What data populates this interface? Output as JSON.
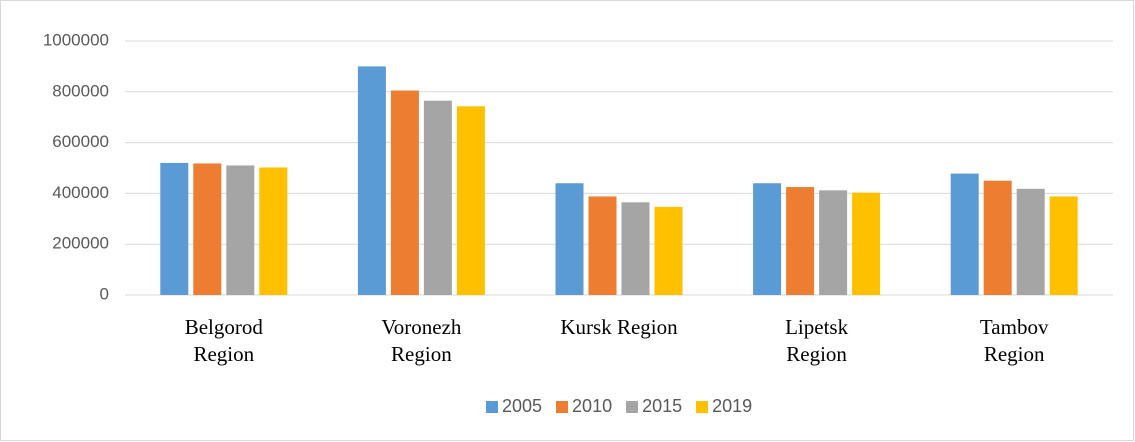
{
  "chart_data": {
    "type": "bar",
    "categories": [
      "Belgorod Region",
      "Voronezh Region",
      "Kursk Region",
      "Lipetsk Region",
      "Tambov Region"
    ],
    "series": [
      {
        "name": "2005",
        "color": "#5b9bd5",
        "values": [
          520000,
          900000,
          440000,
          440000,
          478000
        ]
      },
      {
        "name": "2010",
        "color": "#ed7d31",
        "values": [
          518000,
          805000,
          388000,
          425000,
          450000
        ]
      },
      {
        "name": "2015",
        "color": "#a5a5a5",
        "values": [
          510000,
          765000,
          365000,
          412000,
          418000
        ]
      },
      {
        "name": "2019",
        "color": "#ffc000",
        "values": [
          502000,
          743000,
          347000,
          403000,
          388000
        ]
      }
    ],
    "ylim": [
      0,
      1000000
    ],
    "yticks": [
      0,
      200000,
      400000,
      600000,
      800000,
      1000000
    ],
    "grid": true,
    "legend": "bottom"
  }
}
